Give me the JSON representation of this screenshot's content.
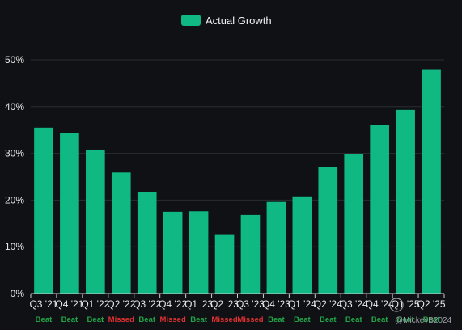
{
  "chart_data": {
    "type": "bar",
    "legend": {
      "label": "Actual Growth",
      "placement": "top-center"
    },
    "categories": [
      "Q3 '21",
      "Q4 '21",
      "Q1 '22",
      "Q2 '22",
      "Q3 '22",
      "Q4 '22",
      "Q1 '23",
      "Q2 '23",
      "Q3 '23",
      "Q4 '23",
      "Q1 '24",
      "Q2 '24",
      "Q3 '24",
      "Q4 '24",
      "Q1 '25",
      "Q2 '25"
    ],
    "series": [
      {
        "name": "Actual Growth",
        "values": [
          35.5,
          34.3,
          30.8,
          25.9,
          21.8,
          17.5,
          17.6,
          12.7,
          16.8,
          19.6,
          20.8,
          27.1,
          29.9,
          36.0,
          39.3,
          48.0
        ]
      }
    ],
    "status": [
      "Beat",
      "Beat",
      "Beat",
      "Missed",
      "Beat",
      "Missed",
      "Beat",
      "Missed",
      "Missed",
      "Beat",
      "Beat",
      "Beat",
      "Beat",
      "Beat",
      "Beat",
      "Beat"
    ],
    "yticks": [
      "0%",
      "10%",
      "20%",
      "30%",
      "40%",
      "50%"
    ],
    "ylim": [
      0,
      50
    ],
    "grid": true,
    "colors": {
      "bar": "#10b981",
      "beat": "#22a447",
      "missed": "#e03131",
      "background": "#0f1114",
      "grid": "#2a2e33"
    },
    "watermark": "@MickeyB2024"
  }
}
